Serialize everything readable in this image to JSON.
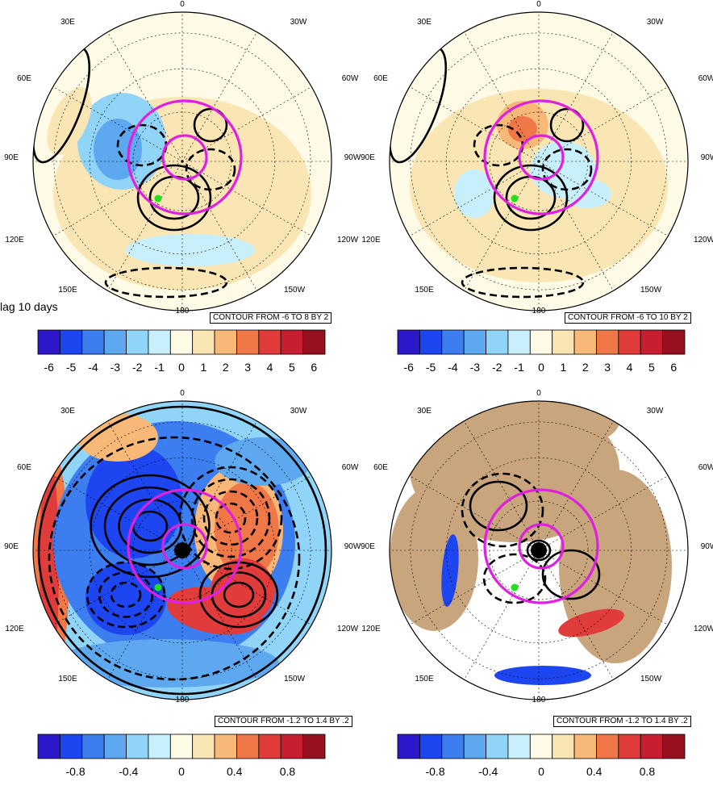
{
  "lag_label": "lag 10 days",
  "longitude_labels": [
    "0",
    "30W",
    "60W",
    "90W",
    "120W",
    "150W",
    "180",
    "150E",
    "120E",
    "90E",
    "60E",
    "30E"
  ],
  "colors": {
    "scale": [
      "#2c18c8",
      "#1e46f0",
      "#3c7ef0",
      "#5ea8f0",
      "#90d4f8",
      "#c8f0fc",
      "#fffbe6",
      "#fae6b4",
      "#f8b878",
      "#f07848",
      "#e03c3c",
      "#c81e32",
      "#961020"
    ],
    "contour": "#000000",
    "circle": "#e020e0",
    "land": "#c8a57c",
    "marker": "#20e020"
  },
  "chart_data": [
    {
      "type": "heatmap",
      "panel": "top-left",
      "projection": "north polar stereographic",
      "contour_info": "CONTOUR FROM -6 TO 8 BY 2",
      "colorbar_ticks": [
        "-6",
        "-5",
        "-4",
        "-3",
        "-2",
        "-1",
        "0",
        "1",
        "2",
        "3",
        "4",
        "5",
        "6"
      ],
      "colorbar_range": [
        -6,
        6
      ]
    },
    {
      "type": "heatmap",
      "panel": "top-right",
      "projection": "north polar stereographic",
      "contour_info": "CONTOUR FROM -6 TO 10 BY 2",
      "colorbar_ticks": [
        "-6",
        "-5",
        "-4",
        "-3",
        "-2",
        "-1",
        "0",
        "1",
        "2",
        "3",
        "4",
        "5",
        "6"
      ],
      "colorbar_range": [
        -6,
        6
      ]
    },
    {
      "type": "heatmap",
      "panel": "bottom-left",
      "projection": "north polar stereographic",
      "contour_info": "CONTOUR FROM -1.2 TO 1.4 BY .2",
      "colorbar_ticks": [
        "-0.8",
        "-0.4",
        "0",
        "0.4",
        "0.8"
      ],
      "colorbar_range": [
        -1.0,
        1.0
      ]
    },
    {
      "type": "heatmap",
      "panel": "bottom-right",
      "projection": "north polar stereographic",
      "contour_info": "CONTOUR FROM -1.2 TO 1.4 BY .2",
      "colorbar_ticks": [
        "-0.8",
        "-0.4",
        "0",
        "0.4",
        "0.8"
      ],
      "colorbar_range": [
        -1.0,
        1.0
      ]
    }
  ]
}
